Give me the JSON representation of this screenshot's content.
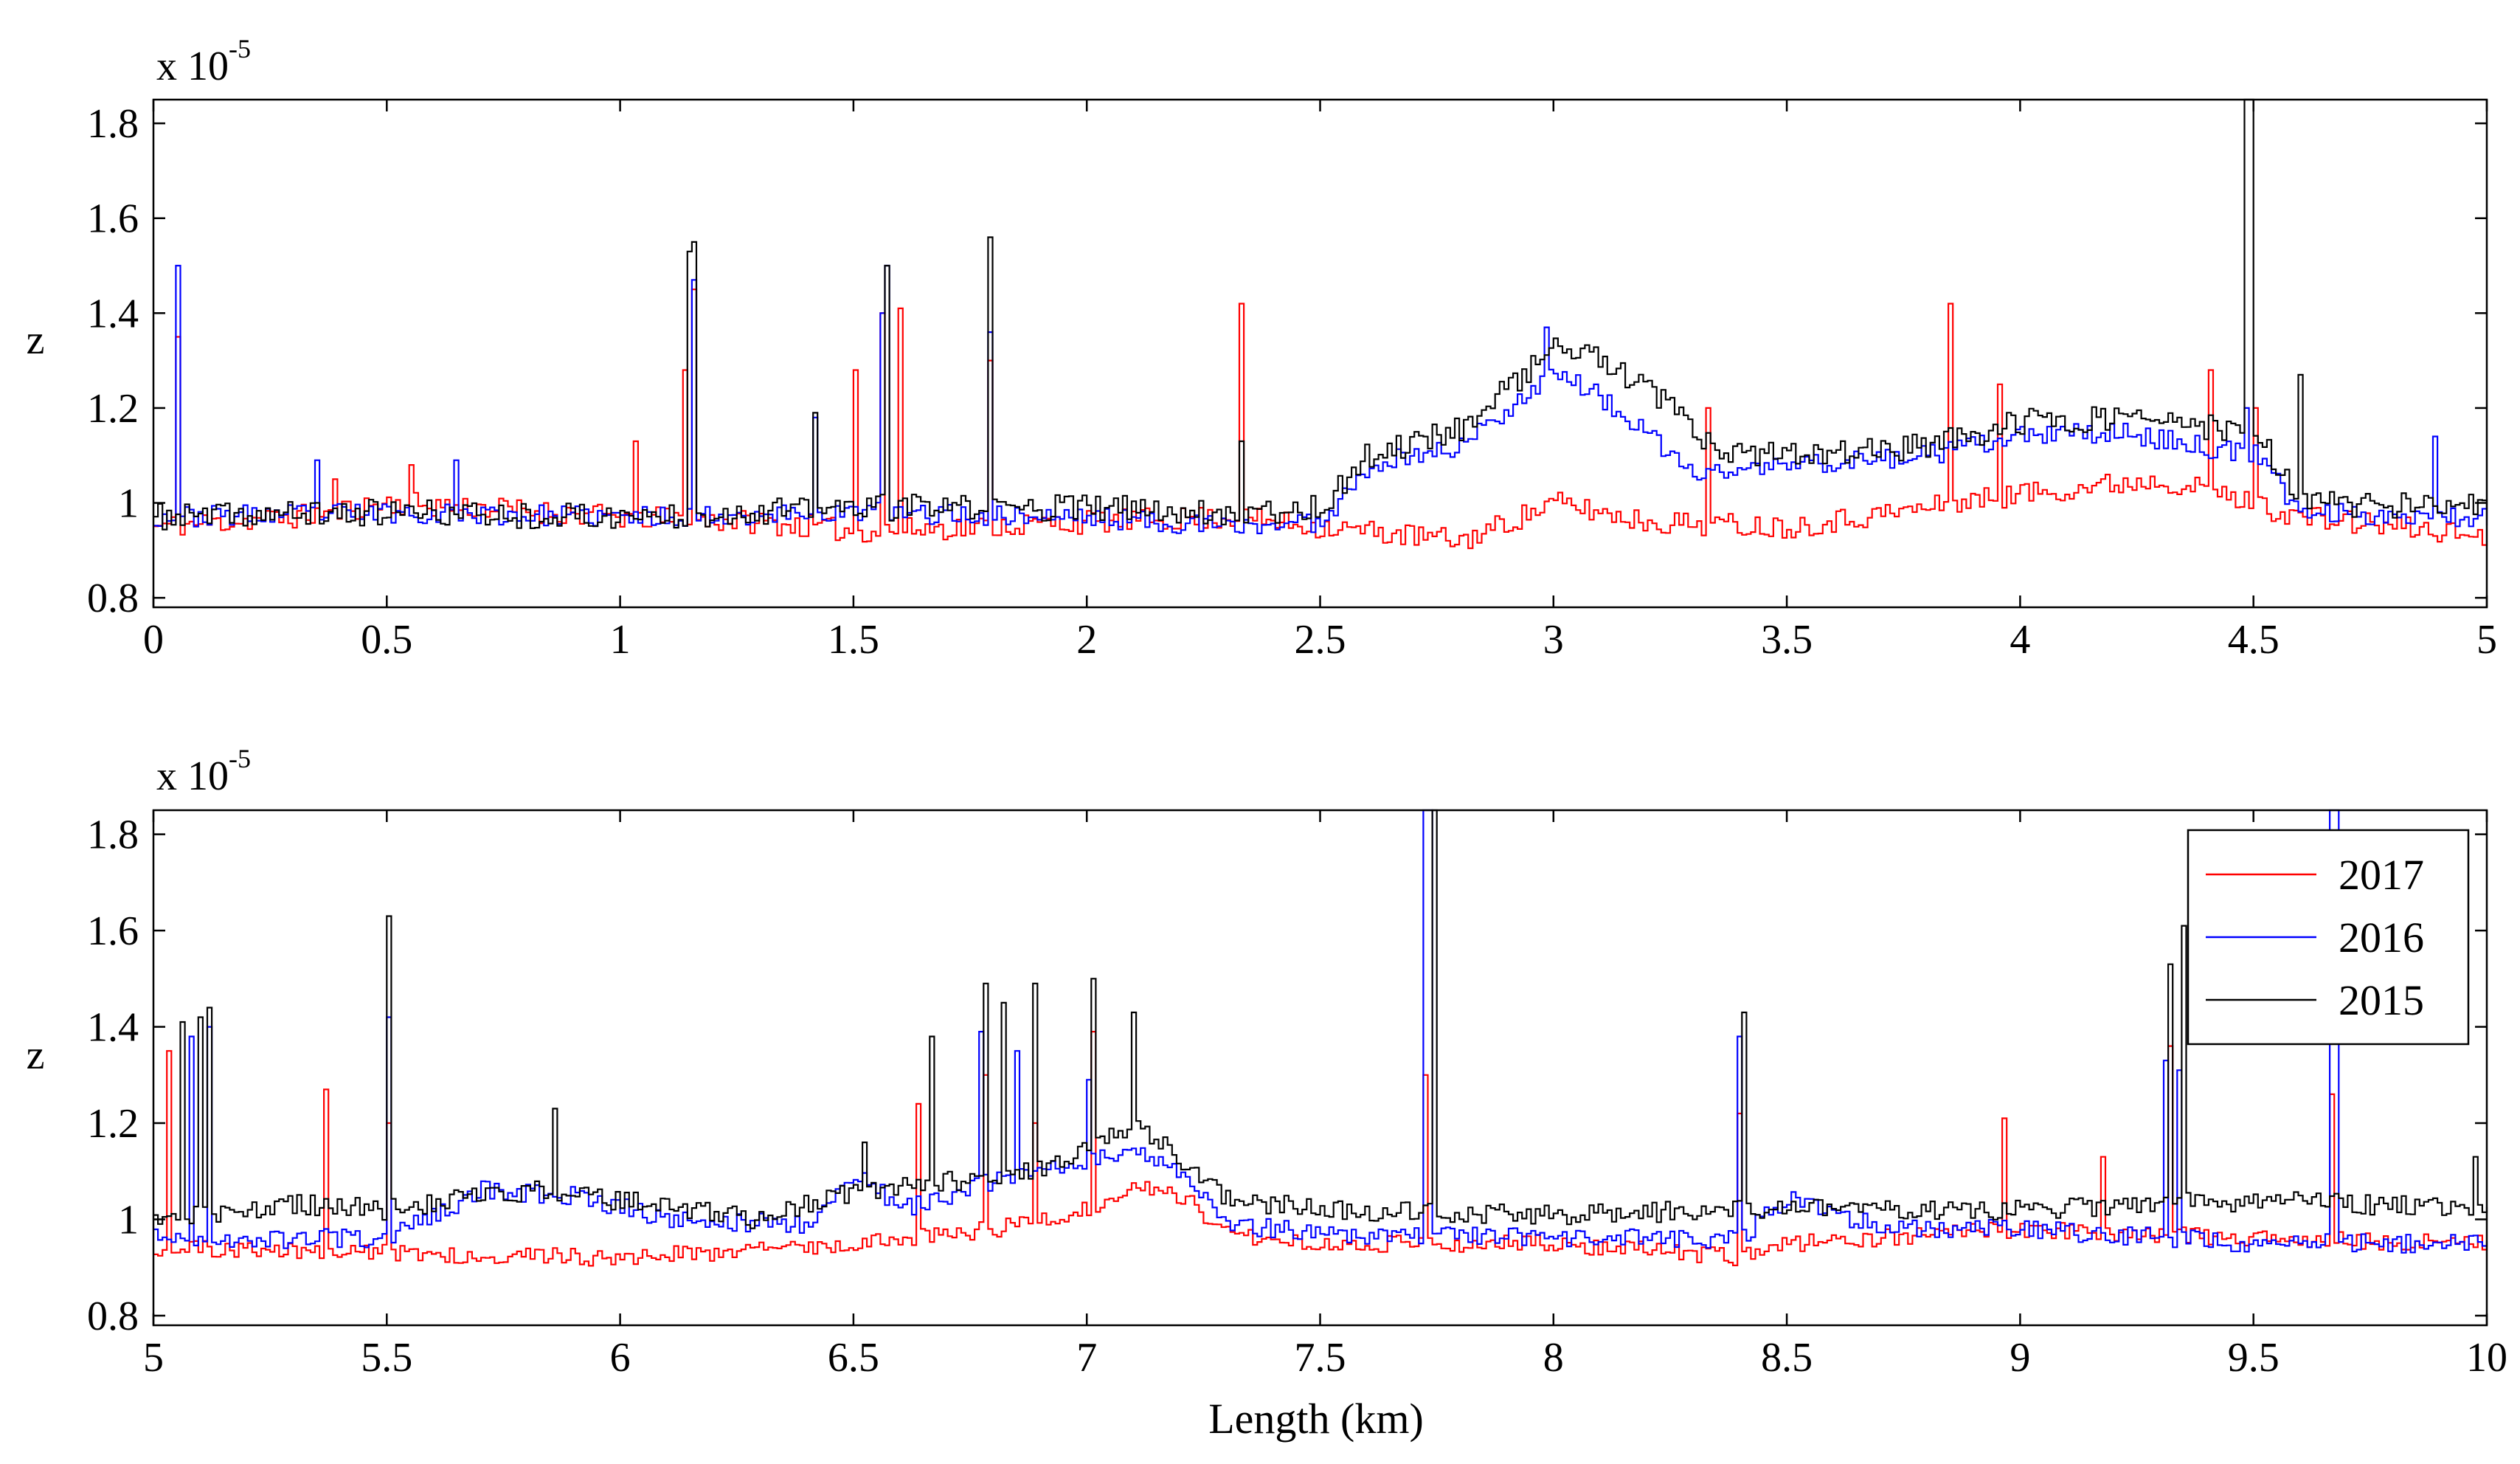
{
  "figure": {
    "xlabel": "Length (km)"
  },
  "legend": {
    "placement": "top-right of lower panel",
    "entries": [
      {
        "label": "2017",
        "color": "#ff0000"
      },
      {
        "label": "2016",
        "color": "#0000ff"
      },
      {
        "label": "2015",
        "color": "#000000"
      }
    ]
  },
  "chart_data": [
    {
      "type": "line",
      "title": "",
      "xlabel": "",
      "ylabel": "z",
      "exponent_label": {
        "prefix": "x 10",
        "power": "-5"
      },
      "xlim": [
        0,
        5
      ],
      "ylim": [
        0.78,
        1.85
      ],
      "xticks": [
        0,
        0.5,
        1,
        1.5,
        2,
        2.5,
        3,
        3.5,
        4,
        4.5,
        5
      ],
      "xtick_labels": [
        "0",
        "0.5",
        "1",
        "1.5",
        "2",
        "2.5",
        "3",
        "3.5",
        "4",
        "4.5",
        "5"
      ],
      "yticks": [
        0.8,
        1.0,
        1.2,
        1.4,
        1.6,
        1.8
      ],
      "ytick_labels": [
        "0.8",
        "1",
        "1.2",
        "1.4",
        "1.6",
        "1.8"
      ],
      "series": [
        {
          "name": "2017",
          "color": "#ff0000",
          "noise": 0.025,
          "seed": 11,
          "baseline": [
            [
              0,
              0.95
            ],
            [
              0.3,
              0.97
            ],
            [
              0.5,
              1.0
            ],
            [
              0.7,
              0.99
            ],
            [
              1.0,
              0.97
            ],
            [
              1.3,
              0.96
            ],
            [
              1.5,
              0.94
            ],
            [
              2.0,
              0.96
            ],
            [
              2.3,
              0.97
            ],
            [
              2.5,
              0.95
            ],
            [
              2.8,
              0.92
            ],
            [
              3.0,
              1.0
            ],
            [
              3.2,
              0.96
            ],
            [
              3.5,
              0.95
            ],
            [
              3.8,
              0.99
            ],
            [
              4.0,
              1.02
            ],
            [
              4.3,
              1.05
            ],
            [
              4.6,
              0.97
            ],
            [
              5.0,
              0.93
            ]
          ],
          "spikes": [
            [
              0.05,
              1.35
            ],
            [
              0.38,
              1.05
            ],
            [
              0.55,
              1.08
            ],
            [
              1.03,
              1.13
            ],
            [
              1.13,
              1.28
            ],
            [
              1.15,
              1.45
            ],
            [
              1.5,
              1.28
            ],
            [
              1.56,
              1.4
            ],
            [
              1.6,
              1.41
            ],
            [
              1.79,
              1.3
            ],
            [
              2.33,
              1.42
            ],
            [
              3.33,
              1.2
            ],
            [
              3.85,
              1.42
            ],
            [
              3.95,
              1.25
            ],
            [
              4.4,
              1.28
            ],
            [
              4.5,
              1.2
            ]
          ]
        },
        {
          "name": "2016",
          "color": "#0000ff",
          "noise": 0.022,
          "seed": 23,
          "baseline": [
            [
              0,
              0.97
            ],
            [
              0.5,
              0.98
            ],
            [
              1.0,
              0.97
            ],
            [
              1.5,
              0.98
            ],
            [
              2.0,
              0.97
            ],
            [
              2.3,
              0.95
            ],
            [
              2.5,
              0.96
            ],
            [
              2.6,
              1.08
            ],
            [
              2.8,
              1.12
            ],
            [
              3.0,
              1.28
            ],
            [
              3.1,
              1.22
            ],
            [
              3.2,
              1.14
            ],
            [
              3.3,
              1.06
            ],
            [
              3.5,
              1.08
            ],
            [
              3.8,
              1.1
            ],
            [
              4.0,
              1.14
            ],
            [
              4.2,
              1.15
            ],
            [
              4.5,
              1.1
            ],
            [
              4.6,
              0.98
            ],
            [
              5.0,
              0.97
            ]
          ],
          "spikes": [
            [
              0.05,
              1.5
            ],
            [
              0.35,
              1.09
            ],
            [
              0.64,
              1.09
            ],
            [
              1.15,
              1.47
            ],
            [
              1.41,
              1.18
            ],
            [
              1.56,
              1.4
            ],
            [
              1.57,
              1.5
            ],
            [
              1.79,
              1.36
            ],
            [
              2.98,
              1.37
            ],
            [
              4.48,
              1.2
            ],
            [
              4.88,
              1.14
            ]
          ]
        },
        {
          "name": "2015",
          "color": "#000000",
          "noise": 0.028,
          "seed": 37,
          "baseline": [
            [
              0,
              0.97
            ],
            [
              0.5,
              0.98
            ],
            [
              1.0,
              0.97
            ],
            [
              1.5,
              0.99
            ],
            [
              2.0,
              0.99
            ],
            [
              2.3,
              0.98
            ],
            [
              2.5,
              0.99
            ],
            [
              2.6,
              1.1
            ],
            [
              2.8,
              1.16
            ],
            [
              3.0,
              1.33
            ],
            [
              3.1,
              1.3
            ],
            [
              3.25,
              1.2
            ],
            [
              3.35,
              1.1
            ],
            [
              3.5,
              1.1
            ],
            [
              3.8,
              1.12
            ],
            [
              4.0,
              1.17
            ],
            [
              4.2,
              1.18
            ],
            [
              4.5,
              1.15
            ],
            [
              4.6,
              1.0
            ],
            [
              5.0,
              0.99
            ]
          ],
          "spikes": [
            [
              1.14,
              1.53
            ],
            [
              1.15,
              1.55
            ],
            [
              1.41,
              1.19
            ],
            [
              1.57,
              1.5
            ],
            [
              1.79,
              1.56
            ],
            [
              2.33,
              1.13
            ],
            [
              4.48,
              1.85
            ],
            [
              4.49,
              1.85
            ],
            [
              4.6,
              1.27
            ]
          ]
        }
      ]
    },
    {
      "type": "line",
      "title": "",
      "xlabel": "Length (km)",
      "ylabel": "z",
      "exponent_label": {
        "prefix": "x 10",
        "power": "-5"
      },
      "xlim": [
        5,
        10
      ],
      "ylim": [
        0.78,
        1.85
      ],
      "xticks": [
        5,
        5.5,
        6,
        6.5,
        7,
        7.5,
        8,
        8.5,
        9,
        9.5,
        10
      ],
      "xtick_labels": [
        "5",
        "5.5",
        "6",
        "6.5",
        "7",
        "7.5",
        "8",
        "8.5",
        "9",
        "9.5",
        "10"
      ],
      "yticks": [
        0.8,
        1.0,
        1.2,
        1.4,
        1.6,
        1.8
      ],
      "ytick_labels": [
        "0.8",
        "1",
        "1.2",
        "1.4",
        "1.6",
        "1.8"
      ],
      "series": [
        {
          "name": "2017",
          "color": "#ff0000",
          "noise": 0.018,
          "seed": 51,
          "baseline": [
            [
              5,
              0.94
            ],
            [
              5.5,
              0.93
            ],
            [
              6.0,
              0.92
            ],
            [
              6.5,
              0.95
            ],
            [
              6.8,
              0.98
            ],
            [
              7.0,
              1.02
            ],
            [
              7.1,
              1.07
            ],
            [
              7.2,
              1.05
            ],
            [
              7.3,
              0.97
            ],
            [
              7.5,
              0.95
            ],
            [
              8.0,
              0.95
            ],
            [
              8.4,
              0.92
            ],
            [
              8.5,
              0.95
            ],
            [
              9.0,
              0.98
            ],
            [
              9.5,
              0.96
            ],
            [
              10,
              0.95
            ]
          ],
          "spikes": [
            [
              5.03,
              1.35
            ],
            [
              5.37,
              1.27
            ],
            [
              5.5,
              1.2
            ],
            [
              6.63,
              1.24
            ],
            [
              6.78,
              1.3
            ],
            [
              6.88,
              1.2
            ],
            [
              7.01,
              1.39
            ],
            [
              7.72,
              1.3
            ],
            [
              8.39,
              1.22
            ],
            [
              8.96,
              1.21
            ],
            [
              9.17,
              1.13
            ],
            [
              9.32,
              1.36
            ],
            [
              9.66,
              1.26
            ]
          ]
        },
        {
          "name": "2016",
          "color": "#0000ff",
          "noise": 0.02,
          "seed": 67,
          "baseline": [
            [
              5,
              0.96
            ],
            [
              5.5,
              0.96
            ],
            [
              5.7,
              1.06
            ],
            [
              5.9,
              1.05
            ],
            [
              6.1,
              1.0
            ],
            [
              6.4,
              0.99
            ],
            [
              6.5,
              1.1
            ],
            [
              6.6,
              1.02
            ],
            [
              6.8,
              1.08
            ],
            [
              7.0,
              1.12
            ],
            [
              7.1,
              1.15
            ],
            [
              7.2,
              1.1
            ],
            [
              7.3,
              0.99
            ],
            [
              7.5,
              0.97
            ],
            [
              8.0,
              0.96
            ],
            [
              8.4,
              0.96
            ],
            [
              8.5,
              1.05
            ],
            [
              8.7,
              0.98
            ],
            [
              9.0,
              0.98
            ],
            [
              9.5,
              0.95
            ],
            [
              10,
              0.95
            ]
          ],
          "spikes": [
            [
              5.08,
              1.38
            ],
            [
              5.12,
              1.4
            ],
            [
              5.5,
              1.42
            ],
            [
              6.77,
              1.39
            ],
            [
              6.85,
              1.35
            ],
            [
              7.0,
              1.29
            ],
            [
              7.72,
              1.85
            ],
            [
              7.73,
              1.85
            ],
            [
              8.39,
              1.38
            ],
            [
              9.31,
              1.33
            ],
            [
              9.34,
              1.31
            ],
            [
              9.66,
              1.85
            ],
            [
              9.67,
              1.85
            ]
          ]
        },
        {
          "name": "2015",
          "color": "#000000",
          "noise": 0.022,
          "seed": 83,
          "baseline": [
            [
              5,
              1.0
            ],
            [
              5.3,
              1.03
            ],
            [
              5.5,
              1.02
            ],
            [
              5.8,
              1.06
            ],
            [
              6.0,
              1.04
            ],
            [
              6.3,
              1.0
            ],
            [
              6.5,
              1.06
            ],
            [
              6.7,
              1.08
            ],
            [
              6.9,
              1.1
            ],
            [
              7.1,
              1.2
            ],
            [
              7.2,
              1.12
            ],
            [
              7.3,
              1.04
            ],
            [
              7.5,
              1.02
            ],
            [
              8.0,
              1.01
            ],
            [
              8.5,
              1.02
            ],
            [
              9.0,
              1.02
            ],
            [
              9.5,
              1.04
            ],
            [
              10,
              1.02
            ]
          ],
          "spikes": [
            [
              5.06,
              1.41
            ],
            [
              5.1,
              1.42
            ],
            [
              5.12,
              1.44
            ],
            [
              5.5,
              1.63
            ],
            [
              5.86,
              1.23
            ],
            [
              6.52,
              1.16
            ],
            [
              6.66,
              1.38
            ],
            [
              6.78,
              1.49
            ],
            [
              6.82,
              1.45
            ],
            [
              6.88,
              1.49
            ],
            [
              7.01,
              1.5
            ],
            [
              7.1,
              1.43
            ],
            [
              7.74,
              1.85
            ],
            [
              8.4,
              1.43
            ],
            [
              9.32,
              1.53
            ],
            [
              9.35,
              1.61
            ],
            [
              9.97,
              1.13
            ]
          ]
        }
      ]
    }
  ]
}
